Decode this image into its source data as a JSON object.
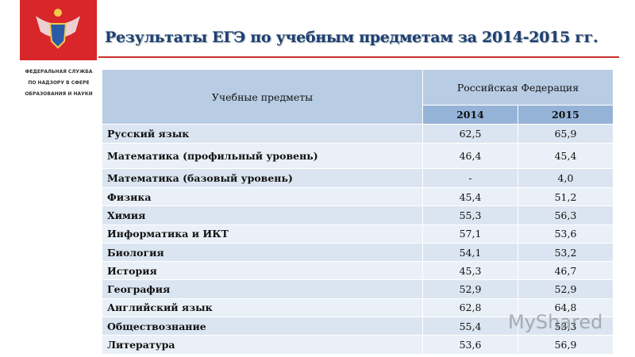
{
  "header": {
    "title": "Результаты ЕГЭ по учебным предметам за 2014-2015 гг.",
    "organization": [
      "ФЕДЕРАЛЬНАЯ СЛУЖБА",
      "ПО НАДЗОРУ В СФЕРЕ",
      "ОБРАЗОВАНИЯ И НАУКИ"
    ]
  },
  "table": {
    "subject_header": "Учебные предметы",
    "group_header": "Российская Федерация",
    "years": [
      "2014",
      "2015"
    ],
    "rows": [
      [
        "Русский язык",
        "62,5",
        "65,9"
      ],
      [
        "Математика (профильный уровень)",
        "46,4",
        "45,4"
      ],
      [
        "Математика (базовый уровень)",
        "-",
        "4,0"
      ],
      [
        "Физика",
        "45,4",
        "51,2"
      ],
      [
        "Химия",
        "55,3",
        "56,3"
      ],
      [
        "Информатика и ИКТ",
        "57,1",
        "53,6"
      ],
      [
        "Биология",
        "54,1",
        "53,2"
      ],
      [
        "История",
        "45,3",
        "46,7"
      ],
      [
        "География",
        "52,9",
        "52,9"
      ],
      [
        "Английский язык",
        "62,8",
        "64,8"
      ],
      [
        "Обществознание",
        "55,4",
        "53,3"
      ],
      [
        "Литература",
        "53,6",
        "56,9"
      ]
    ]
  },
  "watermark": "MyShared"
}
